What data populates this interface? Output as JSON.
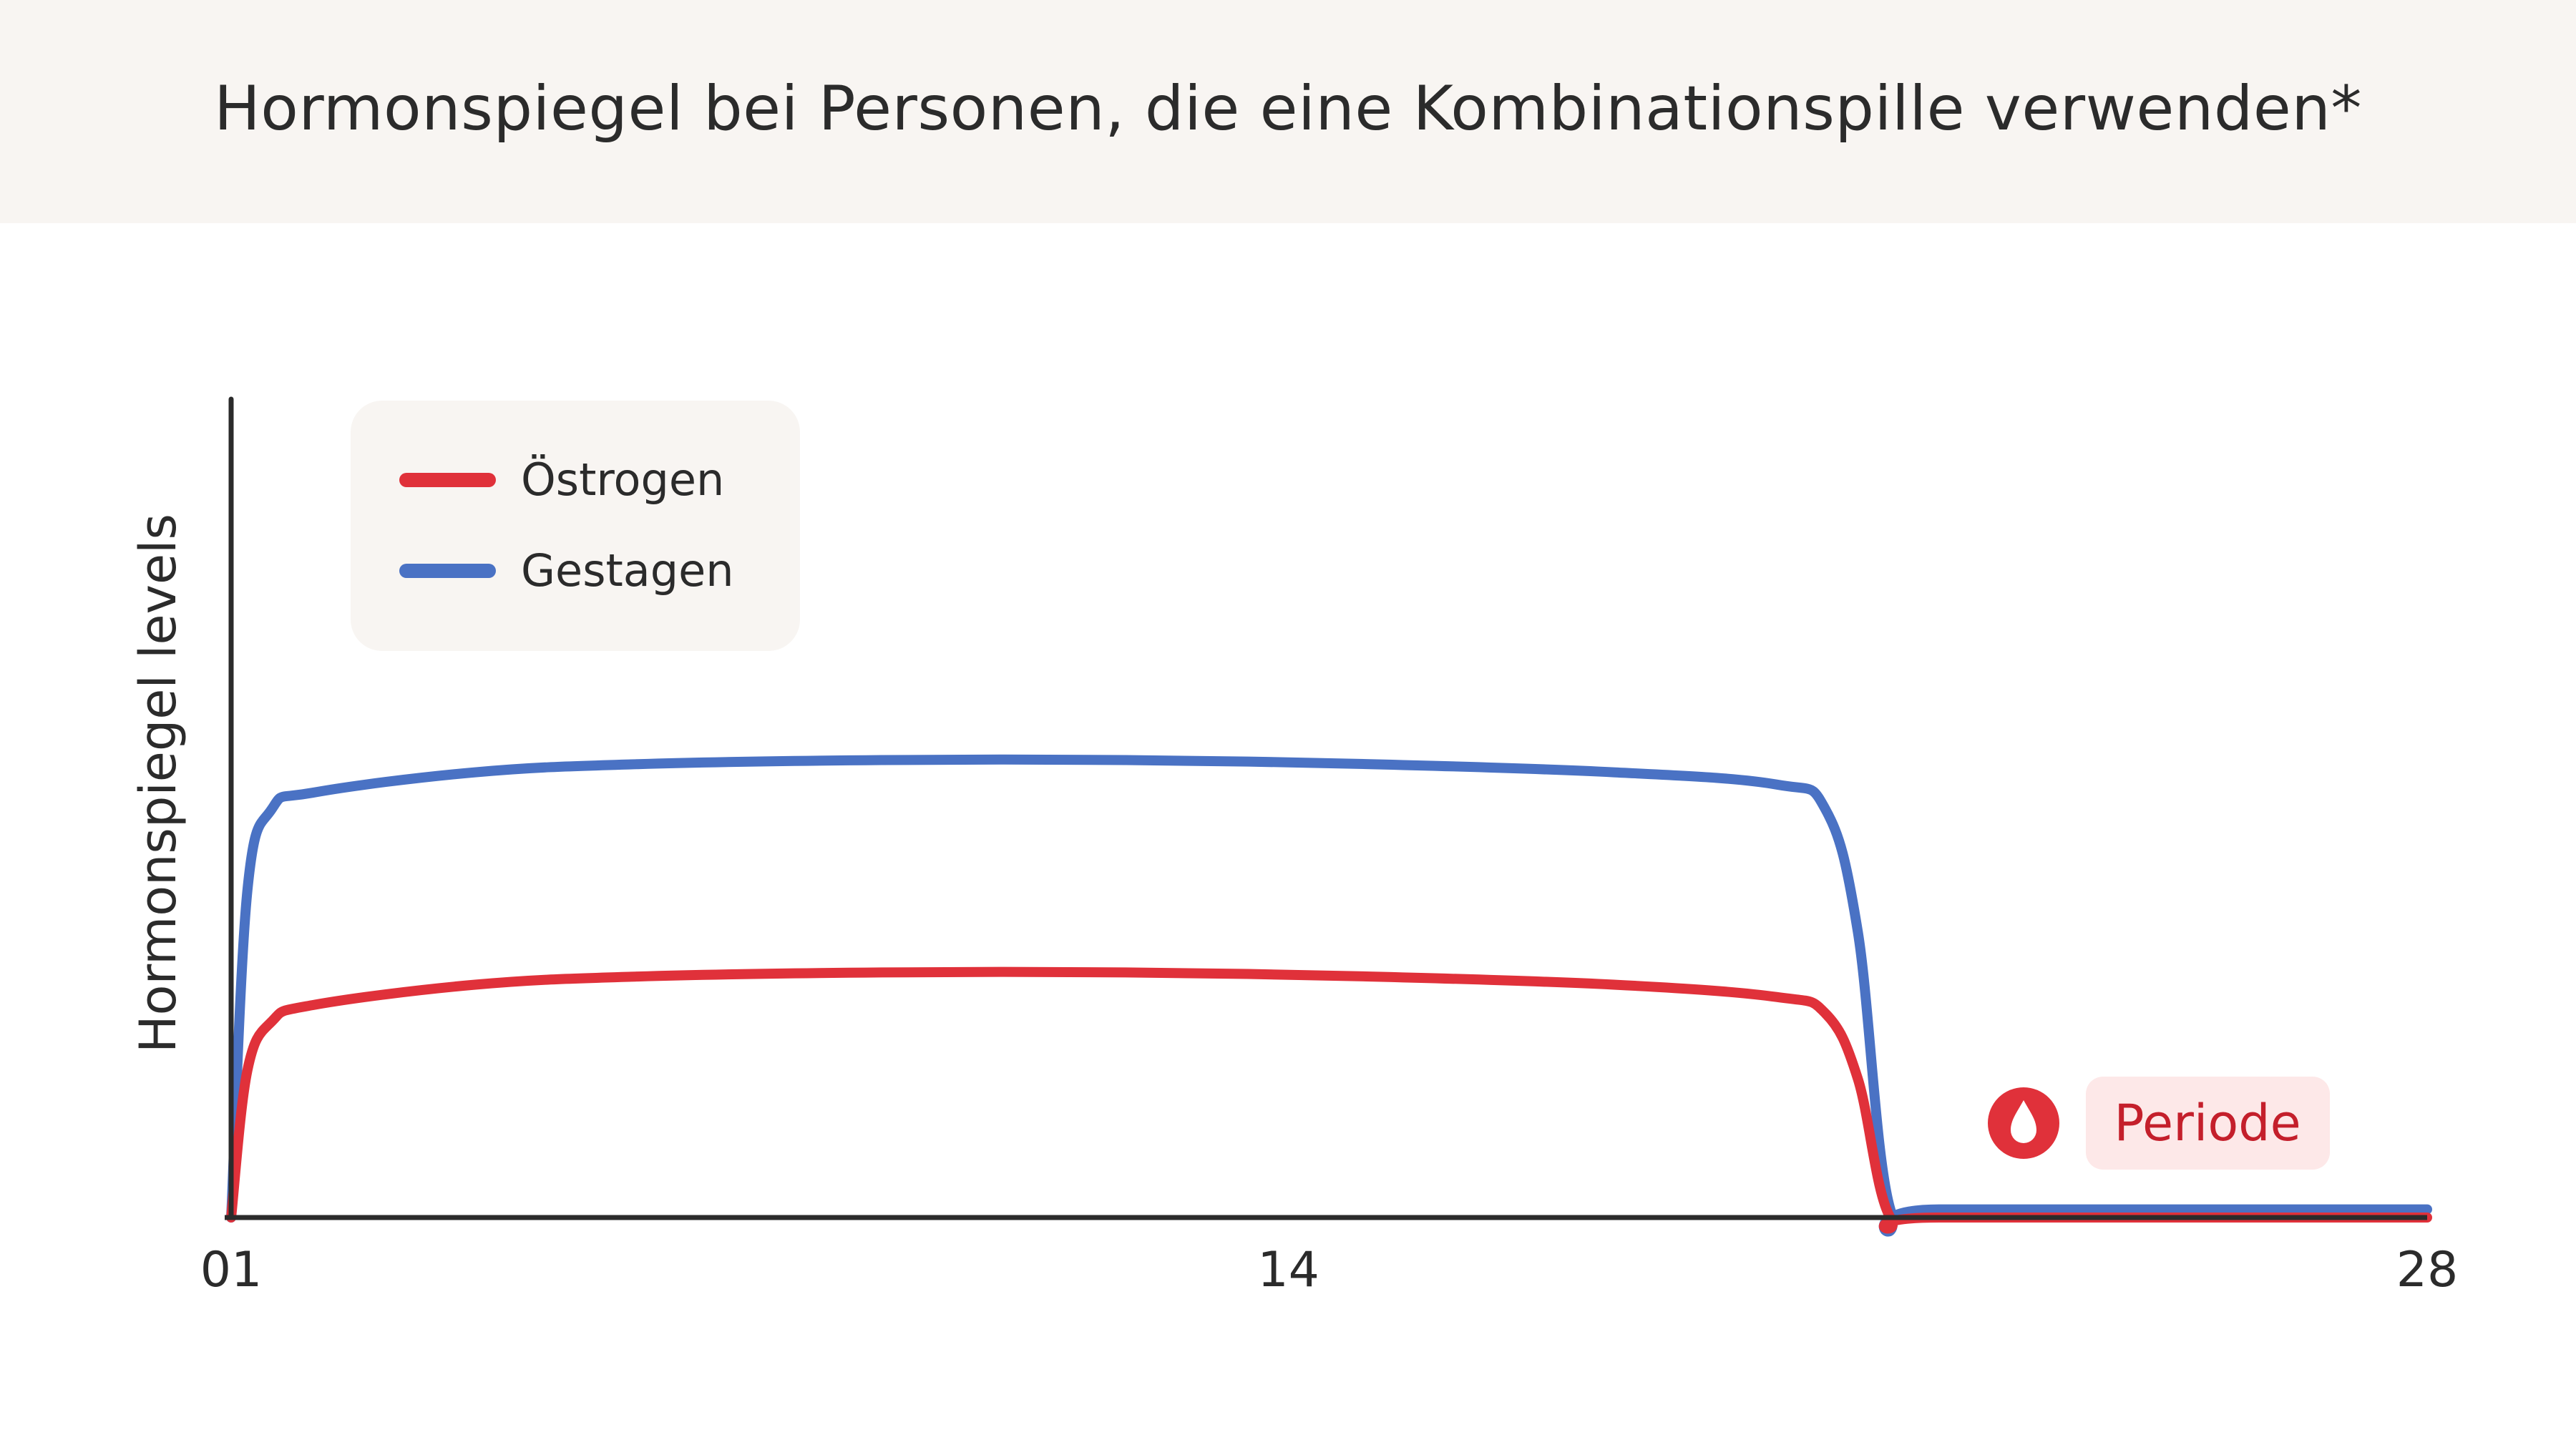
{
  "header": {
    "title": "Hormonspiegel bei Personen, die eine Kombinationspille verwenden*"
  },
  "colors": {
    "header_bg": "#f8f5f2",
    "oestrogen": "#e0313a",
    "gestagen": "#4a72c4",
    "axis": "#2b2b2b",
    "legend_bg": "#f8f5f2",
    "periode_bg": "#fde8e8",
    "periode_text": "#c41f2b"
  },
  "annotation": {
    "label": "Periode",
    "icon": "blood-drop-icon"
  },
  "chart_data": {
    "type": "line",
    "title": "Hormonspiegel bei Personen, die eine Kombinationspille verwenden*",
    "xlabel": "",
    "ylabel": "Hormonspiegel levels",
    "x_ticks": [
      "01",
      "14",
      "28"
    ],
    "xlim": [
      1,
      28
    ],
    "ylim": [
      0,
      100
    ],
    "y_ticks_shown": false,
    "grid": false,
    "legend_position": "top-left",
    "series": [
      {
        "name": "Östrogen",
        "color": "#e0313a",
        "x": [
          1,
          1.2,
          1.5,
          2,
          4,
          6,
          9,
          12,
          15,
          18,
          20,
          20.6,
          21,
          21.4,
          22,
          28
        ],
        "y": [
          0,
          18,
          24,
          26,
          28.5,
          29.5,
          30,
          30,
          29.5,
          28.5,
          27,
          25,
          17,
          0,
          0,
          0
        ]
      },
      {
        "name": "Gestagen",
        "color": "#4a72c4",
        "x": [
          1,
          1.2,
          1.5,
          2,
          4,
          6,
          9,
          12,
          15,
          18,
          20,
          20.6,
          21,
          21.4,
          22,
          28
        ],
        "y": [
          0,
          40,
          50,
          52,
          54.5,
          55.5,
          56,
          56,
          55.5,
          54.5,
          53,
          50,
          35,
          1,
          1,
          1
        ]
      }
    ]
  }
}
